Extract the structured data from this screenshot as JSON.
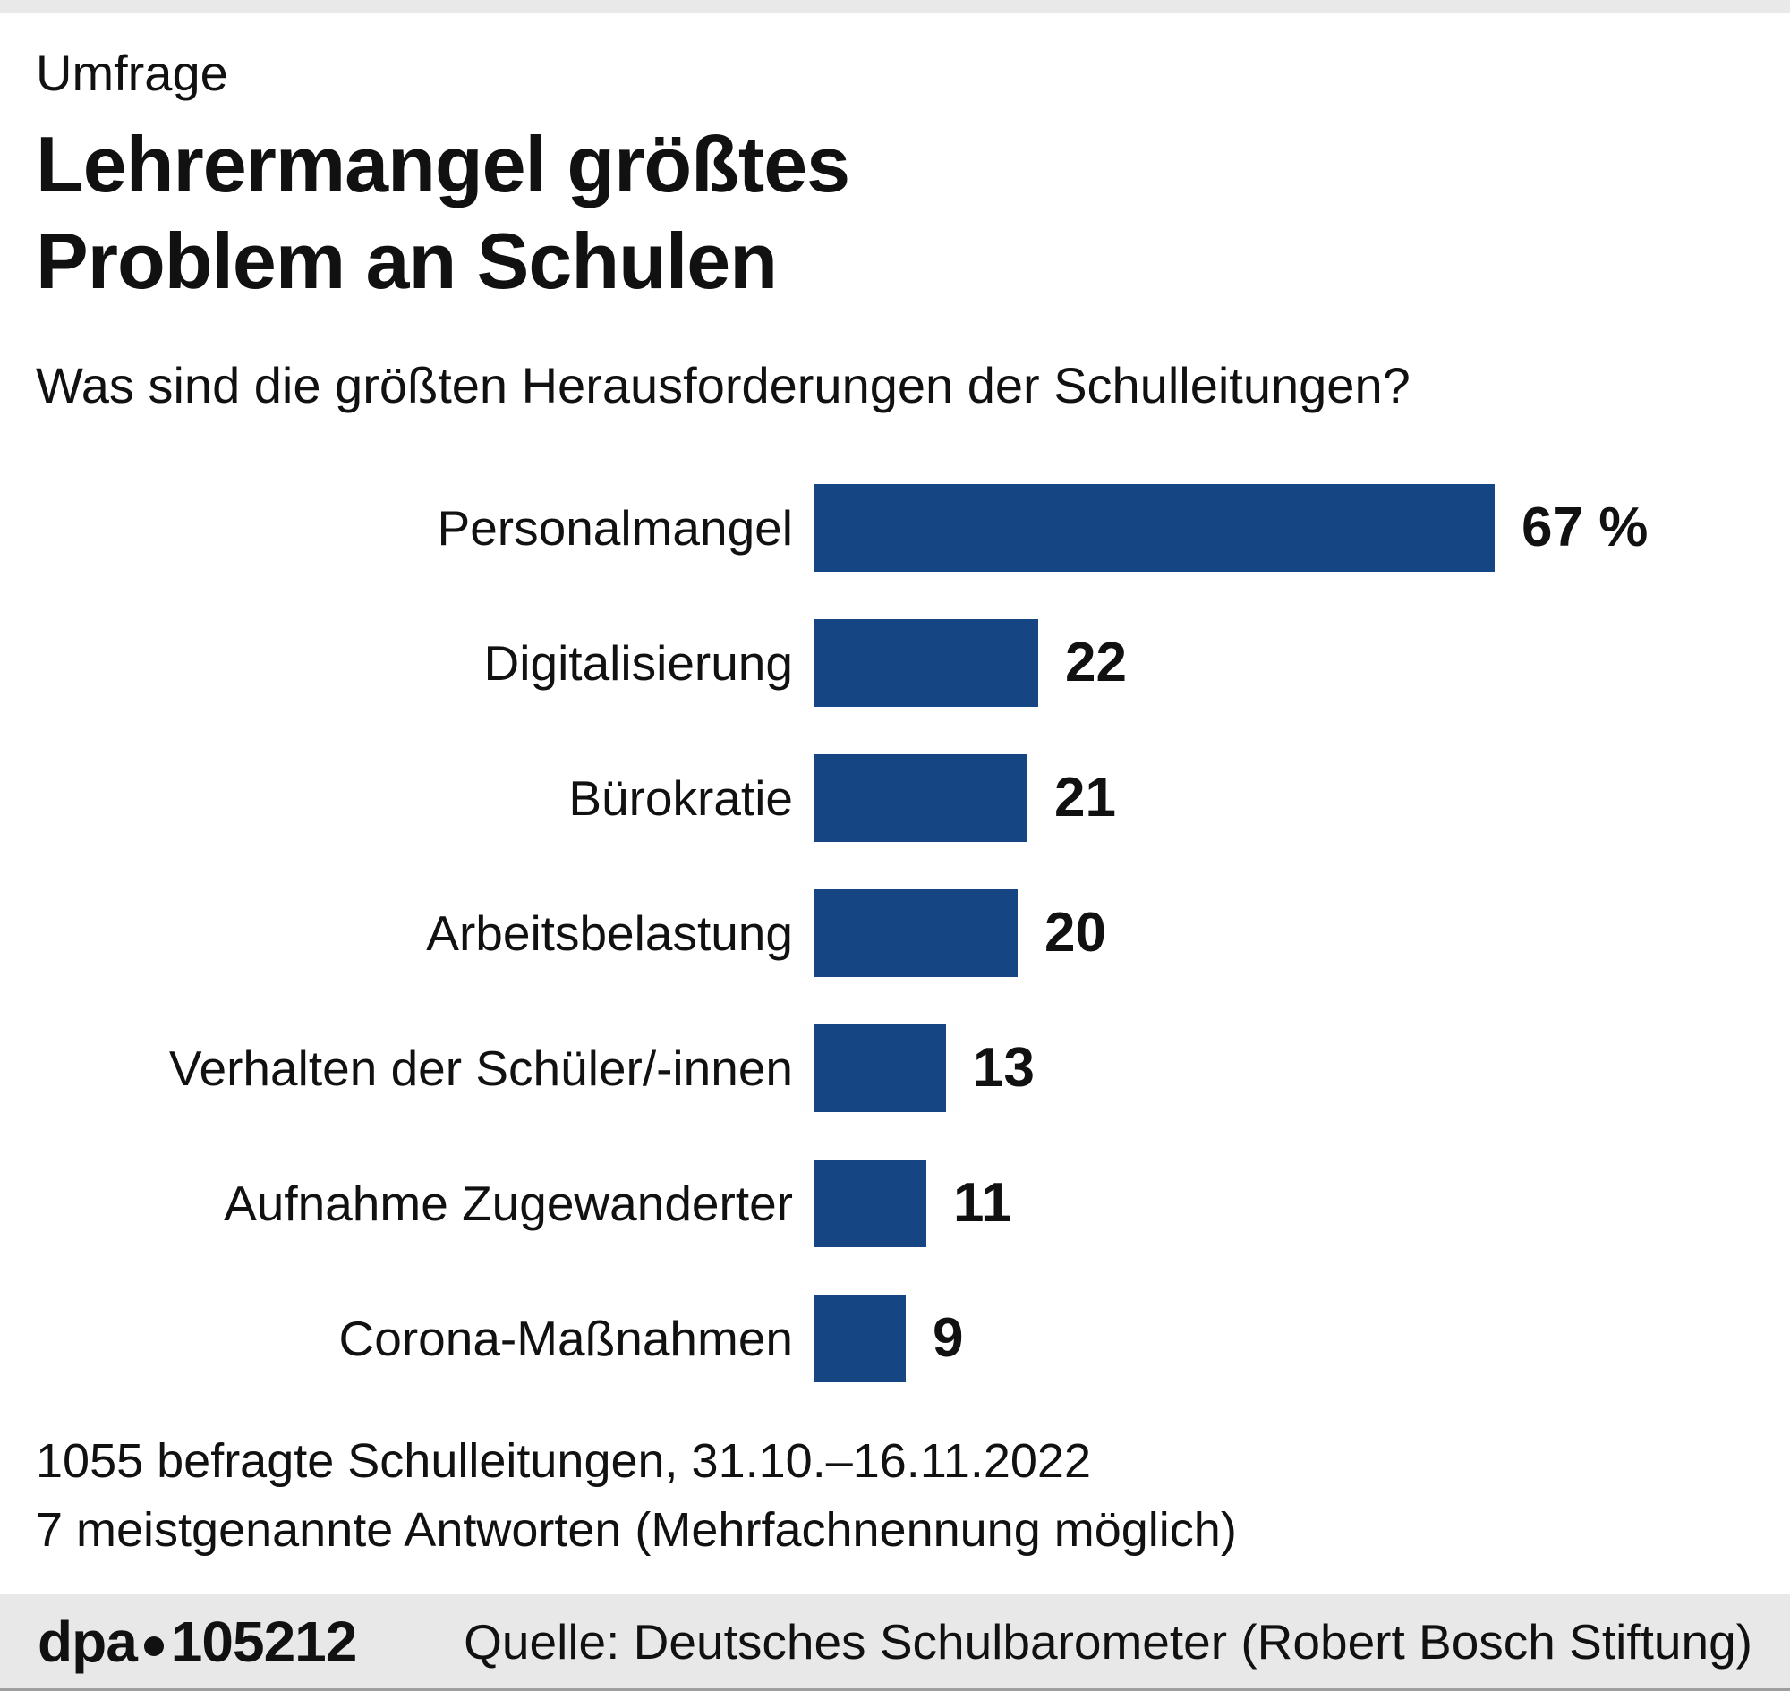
{
  "header": {
    "kicker": "Umfrage",
    "title_line1": "Lehrermangel größtes",
    "title_line2": "Problem an Schulen",
    "subtitle": "Was sind die größten Herausforderungen der Schulleitungen?"
  },
  "chart_data": {
    "type": "bar",
    "orientation": "horizontal",
    "title": "Lehrermangel größtes Problem an Schulen",
    "subtitle": "Was sind die größten Herausforderungen der Schulleitungen?",
    "categories": [
      "Personalmangel",
      "Digitalisierung",
      "Bürokratie",
      "Arbeitsbelastung",
      "Verhalten der Schüler/-innen",
      "Aufnahme Zugewanderter",
      "Corona-Maßnahmen"
    ],
    "values": [
      67,
      22,
      21,
      20,
      13,
      11,
      9
    ],
    "value_labels": [
      "67 %",
      "22",
      "21",
      "20",
      "13",
      "11",
      "9"
    ],
    "unit": "%",
    "xlim": [
      0,
      67
    ],
    "grid": false,
    "legend": false,
    "bar_color": "#164583"
  },
  "footnotes": {
    "line1": "1055 befragte Schulleitungen, 31.10.–16.11.2022",
    "line2": "7 meistgenannte Antworten (Mehrfachnennung möglich)"
  },
  "footer": {
    "brand": "dpa",
    "id": "105212",
    "source": "Quelle: Deutsches Schulbarometer (Robert Bosch Stiftung)"
  },
  "colors": {
    "bar": "#164583",
    "band": "#e8e8e8",
    "text": "#111111"
  }
}
